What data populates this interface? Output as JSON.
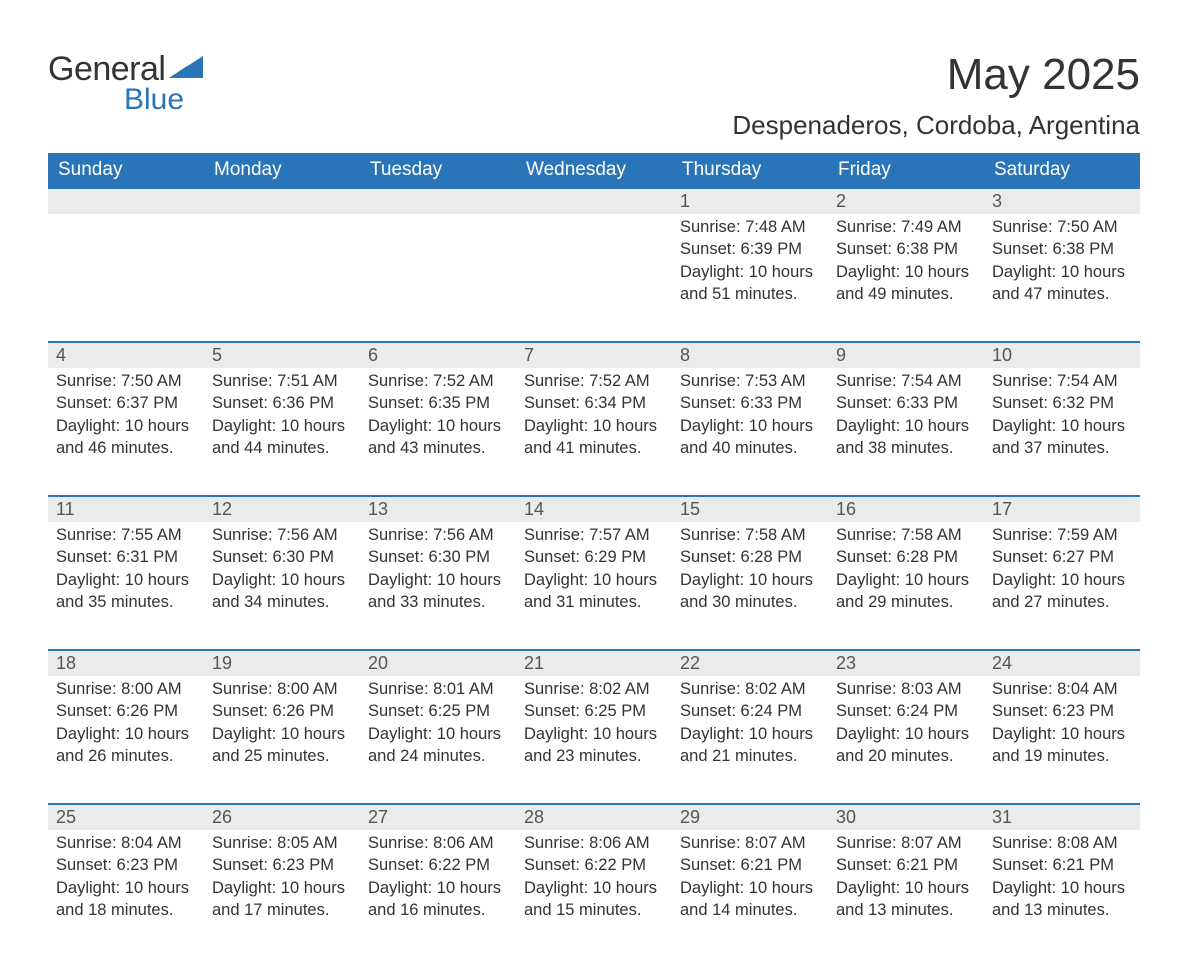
{
  "logo": {
    "general": "General",
    "blue": "Blue"
  },
  "title": "May 2025",
  "location": "Despenaderos, Cordoba, Argentina",
  "colors": {
    "header_bg": "#2a74b8",
    "header_text": "#ffffff",
    "daynum_bg": "#ebebeb",
    "row_border": "#2a74b8",
    "text": "#333333",
    "logo_blue": "#2a74b8"
  },
  "weekdays": [
    "Sunday",
    "Monday",
    "Tuesday",
    "Wednesday",
    "Thursday",
    "Friday",
    "Saturday"
  ],
  "weeks": [
    [
      null,
      null,
      null,
      null,
      {
        "n": "1",
        "sr": "7:48 AM",
        "ss": "6:39 PM",
        "dl": "10 hours and 51 minutes."
      },
      {
        "n": "2",
        "sr": "7:49 AM",
        "ss": "6:38 PM",
        "dl": "10 hours and 49 minutes."
      },
      {
        "n": "3",
        "sr": "7:50 AM",
        "ss": "6:38 PM",
        "dl": "10 hours and 47 minutes."
      }
    ],
    [
      {
        "n": "4",
        "sr": "7:50 AM",
        "ss": "6:37 PM",
        "dl": "10 hours and 46 minutes."
      },
      {
        "n": "5",
        "sr": "7:51 AM",
        "ss": "6:36 PM",
        "dl": "10 hours and 44 minutes."
      },
      {
        "n": "6",
        "sr": "7:52 AM",
        "ss": "6:35 PM",
        "dl": "10 hours and 43 minutes."
      },
      {
        "n": "7",
        "sr": "7:52 AM",
        "ss": "6:34 PM",
        "dl": "10 hours and 41 minutes."
      },
      {
        "n": "8",
        "sr": "7:53 AM",
        "ss": "6:33 PM",
        "dl": "10 hours and 40 minutes."
      },
      {
        "n": "9",
        "sr": "7:54 AM",
        "ss": "6:33 PM",
        "dl": "10 hours and 38 minutes."
      },
      {
        "n": "10",
        "sr": "7:54 AM",
        "ss": "6:32 PM",
        "dl": "10 hours and 37 minutes."
      }
    ],
    [
      {
        "n": "11",
        "sr": "7:55 AM",
        "ss": "6:31 PM",
        "dl": "10 hours and 35 minutes."
      },
      {
        "n": "12",
        "sr": "7:56 AM",
        "ss": "6:30 PM",
        "dl": "10 hours and 34 minutes."
      },
      {
        "n": "13",
        "sr": "7:56 AM",
        "ss": "6:30 PM",
        "dl": "10 hours and 33 minutes."
      },
      {
        "n": "14",
        "sr": "7:57 AM",
        "ss": "6:29 PM",
        "dl": "10 hours and 31 minutes."
      },
      {
        "n": "15",
        "sr": "7:58 AM",
        "ss": "6:28 PM",
        "dl": "10 hours and 30 minutes."
      },
      {
        "n": "16",
        "sr": "7:58 AM",
        "ss": "6:28 PM",
        "dl": "10 hours and 29 minutes."
      },
      {
        "n": "17",
        "sr": "7:59 AM",
        "ss": "6:27 PM",
        "dl": "10 hours and 27 minutes."
      }
    ],
    [
      {
        "n": "18",
        "sr": "8:00 AM",
        "ss": "6:26 PM",
        "dl": "10 hours and 26 minutes."
      },
      {
        "n": "19",
        "sr": "8:00 AM",
        "ss": "6:26 PM",
        "dl": "10 hours and 25 minutes."
      },
      {
        "n": "20",
        "sr": "8:01 AM",
        "ss": "6:25 PM",
        "dl": "10 hours and 24 minutes."
      },
      {
        "n": "21",
        "sr": "8:02 AM",
        "ss": "6:25 PM",
        "dl": "10 hours and 23 minutes."
      },
      {
        "n": "22",
        "sr": "8:02 AM",
        "ss": "6:24 PM",
        "dl": "10 hours and 21 minutes."
      },
      {
        "n": "23",
        "sr": "8:03 AM",
        "ss": "6:24 PM",
        "dl": "10 hours and 20 minutes."
      },
      {
        "n": "24",
        "sr": "8:04 AM",
        "ss": "6:23 PM",
        "dl": "10 hours and 19 minutes."
      }
    ],
    [
      {
        "n": "25",
        "sr": "8:04 AM",
        "ss": "6:23 PM",
        "dl": "10 hours and 18 minutes."
      },
      {
        "n": "26",
        "sr": "8:05 AM",
        "ss": "6:23 PM",
        "dl": "10 hours and 17 minutes."
      },
      {
        "n": "27",
        "sr": "8:06 AM",
        "ss": "6:22 PM",
        "dl": "10 hours and 16 minutes."
      },
      {
        "n": "28",
        "sr": "8:06 AM",
        "ss": "6:22 PM",
        "dl": "10 hours and 15 minutes."
      },
      {
        "n": "29",
        "sr": "8:07 AM",
        "ss": "6:21 PM",
        "dl": "10 hours and 14 minutes."
      },
      {
        "n": "30",
        "sr": "8:07 AM",
        "ss": "6:21 PM",
        "dl": "10 hours and 13 minutes."
      },
      {
        "n": "31",
        "sr": "8:08 AM",
        "ss": "6:21 PM",
        "dl": "10 hours and 13 minutes."
      }
    ]
  ],
  "labels": {
    "sunrise": "Sunrise: ",
    "sunset": "Sunset: ",
    "daylight": "Daylight: "
  }
}
